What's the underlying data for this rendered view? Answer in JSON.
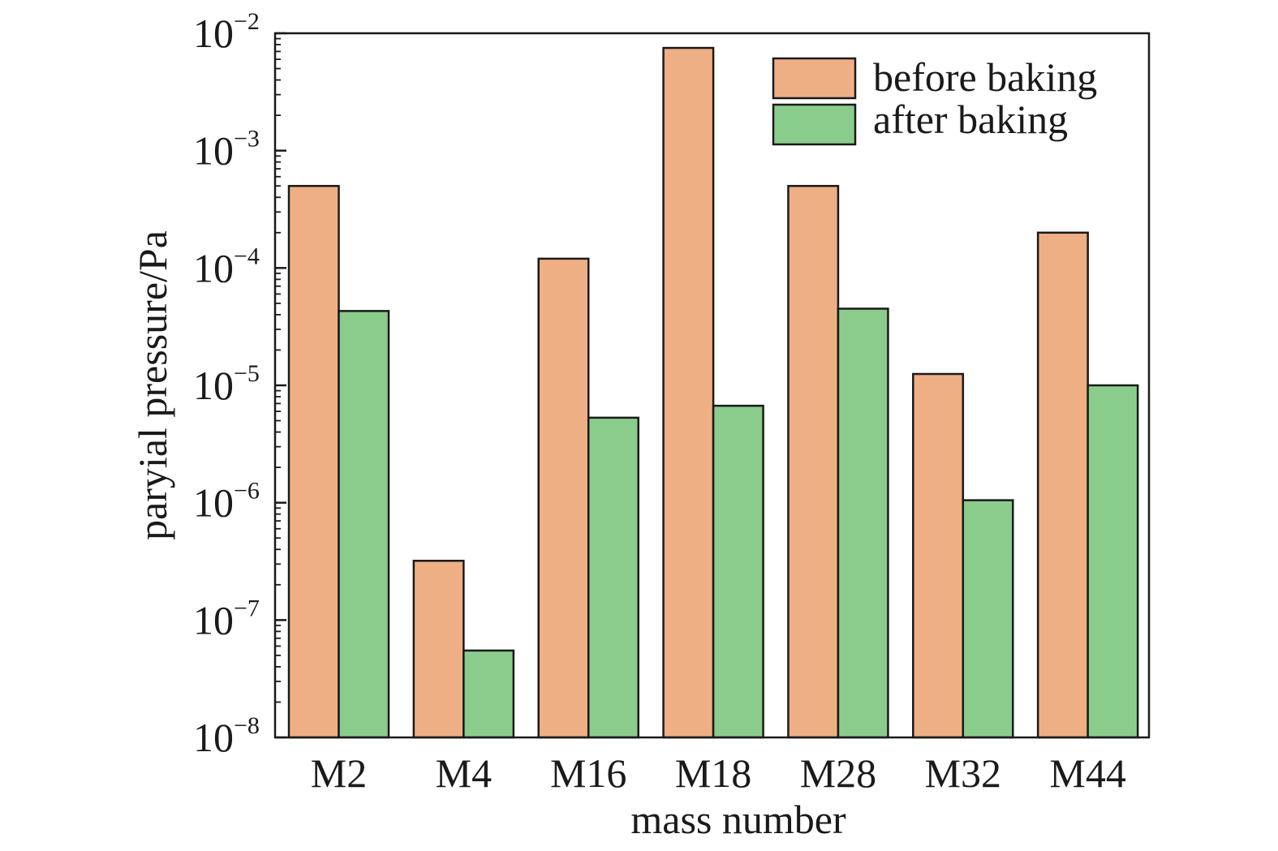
{
  "chart_data": {
    "type": "bar",
    "title": "",
    "xlabel": "mass number",
    "ylabel": "paryial pressure/Pa",
    "yscale": "log",
    "ylim": [
      1e-08,
      0.01
    ],
    "ytick_base": "10",
    "ytick_exponents": [
      "−8",
      "−7",
      "−6",
      "−5",
      "−4",
      "−3",
      "−2"
    ],
    "grid": false,
    "legend_position": "top-right",
    "categories": [
      "M2",
      "M4",
      "M16",
      "M18",
      "M28",
      "M32",
      "M44"
    ],
    "series": [
      {
        "name": "before baking",
        "color": "#EFAF85",
        "values": [
          0.0005,
          3.2e-07,
          0.00012,
          0.0075,
          0.0005,
          1.25e-05,
          0.0002
        ]
      },
      {
        "name": "after baking",
        "color": "#8ACC8C",
        "values": [
          4.3e-05,
          5.5e-08,
          5.3e-06,
          6.7e-06,
          4.5e-05,
          1.05e-06,
          1e-05
        ]
      }
    ]
  }
}
